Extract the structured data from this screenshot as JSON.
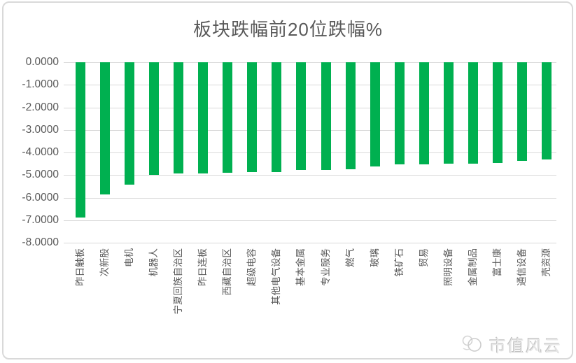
{
  "chart_data": {
    "type": "bar",
    "title": "板块跌幅前20位跌幅%",
    "categories": [
      "昨日触板",
      "次新股",
      "电机",
      "机器人",
      "宁夏回族自治区",
      "昨日连板",
      "西藏自治区",
      "超级电容",
      "其他电气设备",
      "基本金属",
      "专业服务",
      "燃气",
      "玻璃",
      "铁矿石",
      "贸易",
      "照明设备",
      "金属制品",
      "富士康",
      "通信设备",
      "壳资源"
    ],
    "values": [
      -6.87,
      -5.86,
      -5.44,
      -5.0,
      -4.93,
      -4.92,
      -4.9,
      -4.87,
      -4.86,
      -4.79,
      -4.76,
      -4.74,
      -4.62,
      -4.53,
      -4.52,
      -4.51,
      -4.5,
      -4.45,
      -4.38,
      -4.32
    ],
    "xlabel": "",
    "ylabel": "",
    "ylim": [
      -8,
      0
    ],
    "y_ticks": [
      "0.0000",
      "-1.0000",
      "-2.0000",
      "-3.0000",
      "-4.0000",
      "-5.0000",
      "-6.0000",
      "-7.0000",
      "-8.0000"
    ],
    "grid": true,
    "legend": "none",
    "bar_color": "#00B050",
    "gridline_color": "#d9d9d9",
    "text_color": "#595959"
  },
  "watermark": {
    "text": "市值风云"
  }
}
